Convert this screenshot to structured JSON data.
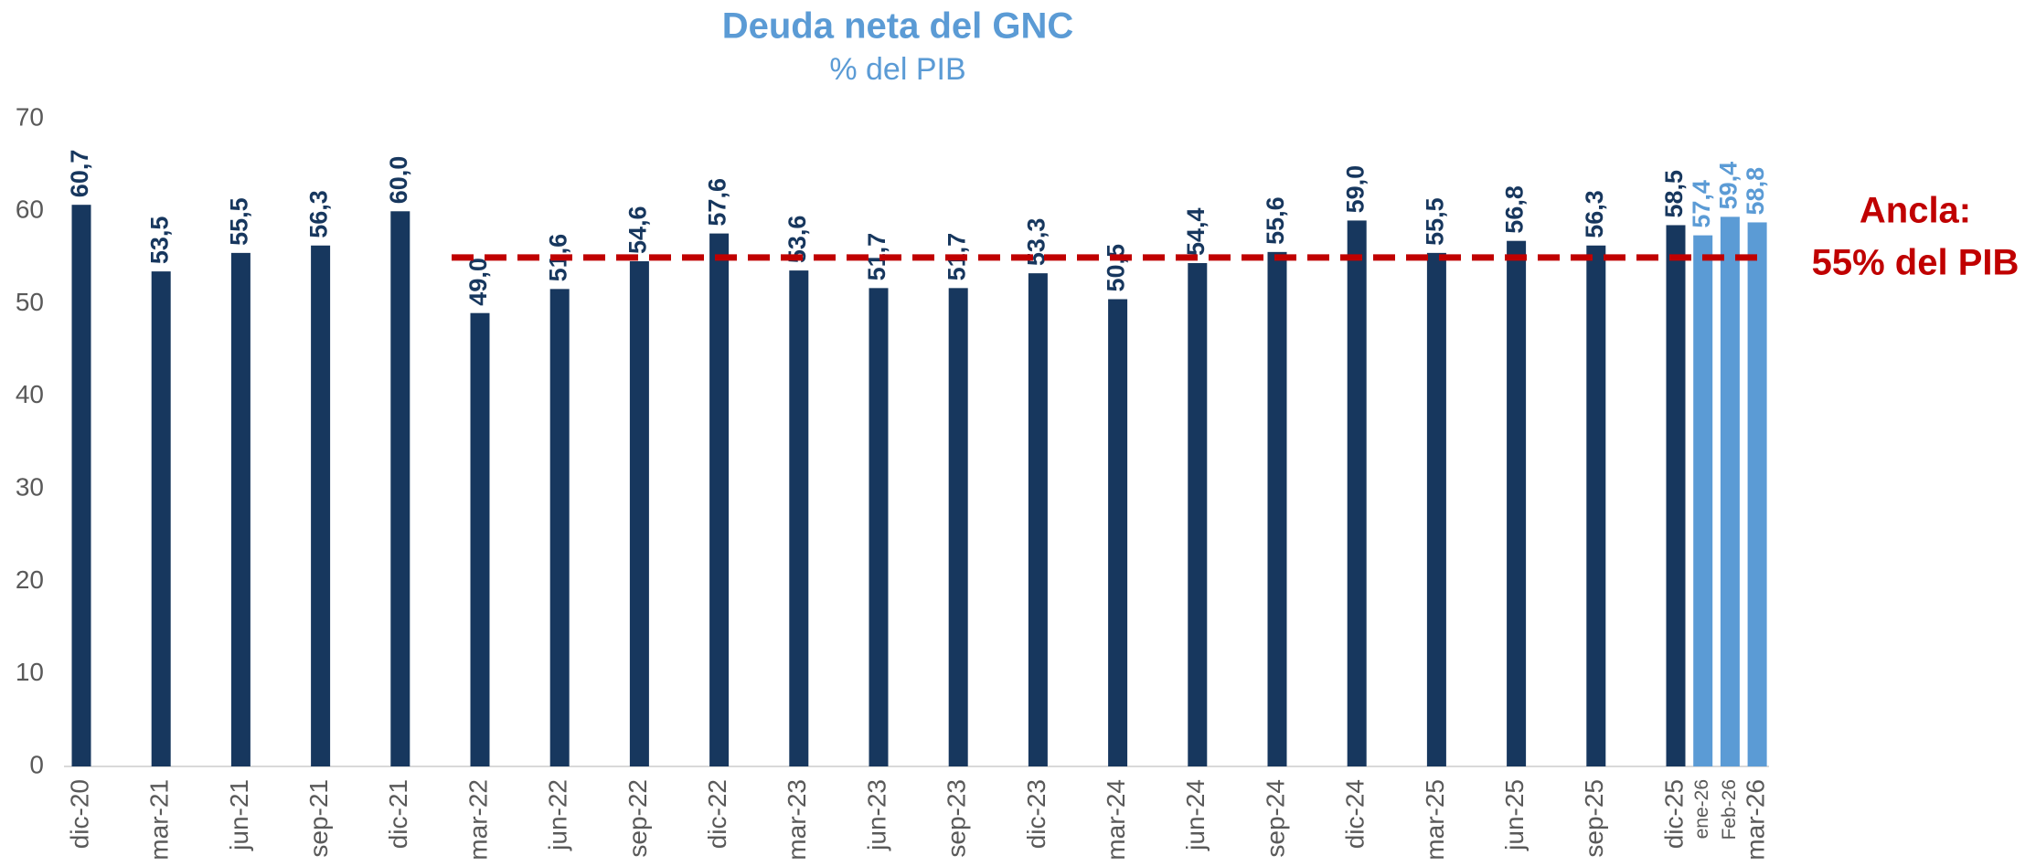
{
  "chart_data": {
    "type": "bar",
    "title": "Deuda neta del GNC",
    "subtitle": "% del PIB",
    "categories": [
      "dic-20",
      "mar-21",
      "jun-21",
      "sep-21",
      "dic-21",
      "mar-22",
      "jun-22",
      "sep-22",
      "dic-22",
      "mar-23",
      "jun-23",
      "sep-23",
      "dic-23",
      "mar-24",
      "jun-24",
      "sep-24",
      "dic-24",
      "mar-25",
      "jun-25",
      "sep-25",
      "dic-25",
      "ene-26",
      "Feb-26",
      "mar-26"
    ],
    "values": [
      60.7,
      53.5,
      55.5,
      56.3,
      60.0,
      49.0,
      51.6,
      54.6,
      57.6,
      53.6,
      51.7,
      51.7,
      53.3,
      50.5,
      54.4,
      55.6,
      59.0,
      55.5,
      56.8,
      56.3,
      58.5,
      57.4,
      59.4,
      58.8
    ],
    "value_labels": [
      "60,7",
      "53,5",
      "55,5",
      "56,3",
      "60,0",
      "49,0",
      "51,6",
      "54,6",
      "57,6",
      "53,6",
      "51,7",
      "51,7",
      "53,3",
      "50,5",
      "54,4",
      "55,6",
      "59,0",
      "55,5",
      "56,8",
      "56,3",
      "58,5",
      "57,4",
      "59,4",
      "58,8"
    ],
    "colors": [
      "#17375e",
      "#17375e",
      "#17375e",
      "#17375e",
      "#17375e",
      "#17375e",
      "#17375e",
      "#17375e",
      "#17375e",
      "#17375e",
      "#17375e",
      "#17375e",
      "#17375e",
      "#17375e",
      "#17375e",
      "#17375e",
      "#17375e",
      "#17375e",
      "#17375e",
      "#17375e",
      "#17375e",
      "#5b9bd5",
      "#5b9bd5",
      "#5b9bd5"
    ],
    "ylim": [
      0,
      70
    ],
    "yticks": [
      0,
      10,
      20,
      30,
      40,
      50,
      60,
      70
    ],
    "reference_line": {
      "value": 55,
      "color": "#c00000",
      "label": [
        "Ancla:",
        "55% del PIB"
      ]
    }
  }
}
